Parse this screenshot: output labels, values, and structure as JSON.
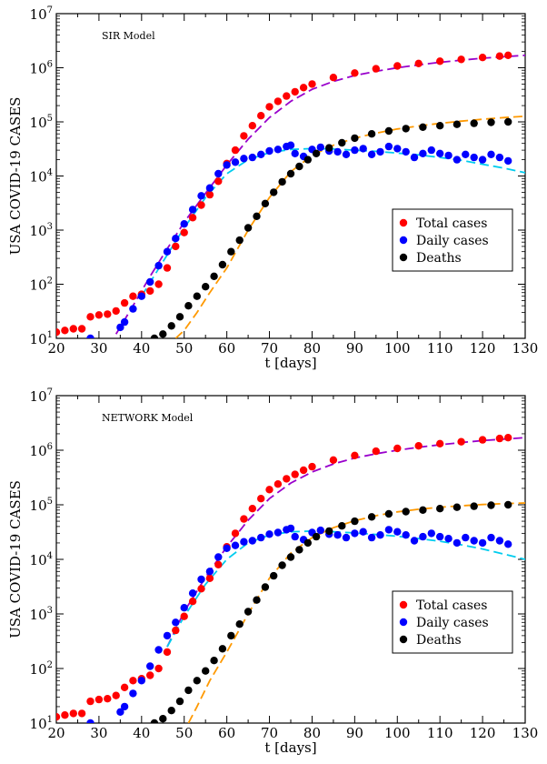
{
  "chart_data": [
    {
      "type": "scatter",
      "title": "SIR Model",
      "xlabel": "t [days]",
      "ylabel": "USA COVID-19 CASES",
      "xlim": [
        20,
        130
      ],
      "ylim": [
        10,
        10000000
      ],
      "yscale": "log",
      "xticks": [
        20,
        30,
        40,
        50,
        60,
        70,
        80,
        90,
        100,
        110,
        120,
        130
      ],
      "yticks": [
        {
          "base": "10",
          "exp": "1",
          "value": 10
        },
        {
          "base": "10",
          "exp": "2",
          "value": 100
        },
        {
          "base": "10",
          "exp": "3",
          "value": 1000
        },
        {
          "base": "10",
          "exp": "4",
          "value": 10000
        },
        {
          "base": "10",
          "exp": "5",
          "value": 100000
        },
        {
          "base": "10",
          "exp": "6",
          "value": 1000000
        },
        {
          "base": "10",
          "exp": "7",
          "value": 10000000
        }
      ],
      "legend_position": "lower-right",
      "series": [
        {
          "name": "Total cases",
          "color": "#ff0000",
          "kind": "scatter",
          "x": [
            20,
            22,
            24,
            26,
            28,
            30,
            32,
            34,
            36,
            38,
            40,
            42,
            44,
            46,
            48,
            50,
            52,
            54,
            56,
            58,
            60,
            62,
            64,
            66,
            68,
            70,
            72,
            74,
            76,
            78,
            80,
            85,
            90,
            95,
            100,
            105,
            110,
            115,
            120,
            124,
            126
          ],
          "y": [
            13,
            14,
            15,
            15,
            25,
            27,
            28,
            32,
            45,
            60,
            65,
            75,
            100,
            200,
            500,
            900,
            1700,
            2900,
            4500,
            8000,
            17000,
            30000,
            55000,
            85000,
            130000,
            190000,
            240000,
            300000,
            360000,
            430000,
            500000,
            660000,
            800000,
            960000,
            1080000,
            1200000,
            1320000,
            1430000,
            1550000,
            1640000,
            1700000
          ]
        },
        {
          "name": "Daily cases",
          "color": "#0000ff",
          "kind": "scatter",
          "x": [
            28,
            35,
            36,
            38,
            40,
            42,
            44,
            46,
            48,
            50,
            52,
            54,
            56,
            58,
            60,
            62,
            64,
            66,
            68,
            70,
            72,
            74,
            75,
            76,
            78,
            80,
            82,
            84,
            86,
            88,
            90,
            92,
            94,
            96,
            98,
            100,
            102,
            104,
            106,
            108,
            110,
            112,
            114,
            116,
            118,
            120,
            122,
            124,
            126
          ],
          "y": [
            10,
            16,
            20,
            35,
            60,
            110,
            220,
            400,
            700,
            1300,
            2400,
            4300,
            6000,
            11000,
            16000,
            18000,
            21000,
            22000,
            25000,
            29000,
            31000,
            35000,
            37000,
            26000,
            23000,
            31000,
            34000,
            29000,
            28000,
            25000,
            30000,
            32000,
            25000,
            28000,
            35000,
            32000,
            28000,
            22000,
            26000,
            30000,
            26000,
            24000,
            20000,
            25000,
            22000,
            20000,
            25000,
            22000,
            19000
          ]
        },
        {
          "name": "Deaths",
          "color": "#000000",
          "kind": "scatter",
          "x": [
            43,
            45,
            47,
            49,
            51,
            53,
            55,
            57,
            59,
            61,
            63,
            65,
            67,
            69,
            71,
            73,
            75,
            77,
            79,
            81,
            84,
            87,
            90,
            94,
            98,
            102,
            106,
            110,
            114,
            118,
            122,
            126
          ],
          "y": [
            10,
            12,
            17,
            25,
            40,
            60,
            90,
            140,
            230,
            400,
            650,
            1100,
            1800,
            3100,
            5000,
            7800,
            11000,
            15000,
            20000,
            26000,
            33000,
            41000,
            50000,
            60000,
            68000,
            75000,
            80000,
            85000,
            90000,
            94000,
            98000,
            100000
          ]
        },
        {
          "name": "",
          "color": "#9900cc",
          "kind": "line",
          "dash": "10 5",
          "x": [
            34,
            38,
            42,
            46,
            50,
            55,
            60,
            65,
            70,
            75,
            80,
            85,
            90,
            95,
            100,
            105,
            110,
            115,
            120,
            125,
            130
          ],
          "y": [
            12,
            40,
            140,
            450,
            1400,
            4800,
            16000,
            48000,
            120000,
            240000,
            400000,
            560000,
            720000,
            860000,
            1000000,
            1130000,
            1260000,
            1380000,
            1500000,
            1600000,
            1700000
          ]
        },
        {
          "name": "",
          "color": "#00ccee",
          "kind": "line",
          "dash": "10 5",
          "x": [
            40,
            45,
            50,
            55,
            60,
            65,
            70,
            75,
            80,
            85,
            90,
            95,
            100,
            105,
            110,
            115,
            120,
            125,
            130
          ],
          "y": [
            60,
            260,
            1100,
            4000,
            11000,
            20000,
            27000,
            31000,
            32000,
            31500,
            30000,
            28500,
            26500,
            24500,
            22000,
            19500,
            16500,
            14000,
            11500
          ]
        },
        {
          "name": "",
          "color": "#ff9900",
          "kind": "line",
          "dash": "10 5",
          "x": [
            48,
            50,
            53,
            56,
            60,
            65,
            70,
            75,
            80,
            85,
            90,
            95,
            100,
            105,
            110,
            115,
            120,
            125,
            130
          ],
          "y": [
            10,
            14,
            30,
            70,
            200,
            1000,
            4000,
            12000,
            24000,
            37000,
            50000,
            62000,
            74000,
            84000,
            94000,
            103000,
            112000,
            120000,
            127000
          ]
        }
      ]
    },
    {
      "type": "scatter",
      "title": "NETWORK Model",
      "xlabel": "t [days]",
      "ylabel": "USA COVID-19 CASES",
      "xlim": [
        20,
        130
      ],
      "ylim": [
        10,
        10000000
      ],
      "yscale": "log",
      "xticks": [
        20,
        30,
        40,
        50,
        60,
        70,
        80,
        90,
        100,
        110,
        120,
        130
      ],
      "yticks": [
        {
          "base": "10",
          "exp": "1",
          "value": 10
        },
        {
          "base": "10",
          "exp": "2",
          "value": 100
        },
        {
          "base": "10",
          "exp": "3",
          "value": 1000
        },
        {
          "base": "10",
          "exp": "4",
          "value": 10000
        },
        {
          "base": "10",
          "exp": "5",
          "value": 100000
        },
        {
          "base": "10",
          "exp": "6",
          "value": 1000000
        },
        {
          "base": "10",
          "exp": "7",
          "value": 10000000
        }
      ],
      "legend_position": "lower-right",
      "series": [
        {
          "name": "Total cases",
          "color": "#ff0000",
          "kind": "scatter",
          "x": [
            20,
            22,
            24,
            26,
            28,
            30,
            32,
            34,
            36,
            38,
            40,
            42,
            44,
            46,
            48,
            50,
            52,
            54,
            56,
            58,
            60,
            62,
            64,
            66,
            68,
            70,
            72,
            74,
            76,
            78,
            80,
            85,
            90,
            95,
            100,
            105,
            110,
            115,
            120,
            124,
            126
          ],
          "y": [
            13,
            14,
            15,
            15,
            25,
            27,
            28,
            32,
            45,
            60,
            65,
            75,
            100,
            200,
            500,
            900,
            1700,
            2900,
            4500,
            8000,
            17000,
            30000,
            55000,
            85000,
            130000,
            190000,
            240000,
            300000,
            360000,
            430000,
            500000,
            660000,
            800000,
            960000,
            1080000,
            1200000,
            1320000,
            1430000,
            1550000,
            1640000,
            1700000
          ]
        },
        {
          "name": "Daily cases",
          "color": "#0000ff",
          "kind": "scatter",
          "x": [
            28,
            35,
            36,
            38,
            40,
            42,
            44,
            46,
            48,
            50,
            52,
            54,
            56,
            58,
            60,
            62,
            64,
            66,
            68,
            70,
            72,
            74,
            75,
            76,
            78,
            80,
            82,
            84,
            86,
            88,
            90,
            92,
            94,
            96,
            98,
            100,
            102,
            104,
            106,
            108,
            110,
            112,
            114,
            116,
            118,
            120,
            122,
            124,
            126
          ],
          "y": [
            10,
            16,
            20,
            35,
            60,
            110,
            220,
            400,
            700,
            1300,
            2400,
            4300,
            6000,
            11000,
            16000,
            18000,
            21000,
            22000,
            25000,
            29000,
            31000,
            35000,
            37000,
            26000,
            23000,
            31000,
            34000,
            29000,
            28000,
            25000,
            30000,
            32000,
            25000,
            28000,
            35000,
            32000,
            28000,
            22000,
            26000,
            30000,
            26000,
            24000,
            20000,
            25000,
            22000,
            20000,
            25000,
            22000,
            19000
          ]
        },
        {
          "name": "Deaths",
          "color": "#000000",
          "kind": "scatter",
          "x": [
            43,
            45,
            47,
            49,
            51,
            53,
            55,
            57,
            59,
            61,
            63,
            65,
            67,
            69,
            71,
            73,
            75,
            77,
            79,
            81,
            84,
            87,
            90,
            94,
            98,
            102,
            106,
            110,
            114,
            118,
            122,
            126
          ],
          "y": [
            10,
            12,
            17,
            25,
            40,
            60,
            90,
            140,
            230,
            400,
            650,
            1100,
            1800,
            3100,
            5000,
            7800,
            11000,
            15000,
            20000,
            26000,
            33000,
            41000,
            50000,
            60000,
            68000,
            75000,
            80000,
            85000,
            90000,
            94000,
            98000,
            100000
          ]
        },
        {
          "name": "",
          "color": "#9900cc",
          "kind": "line",
          "dash": "10 5",
          "x": [
            46,
            50,
            55,
            60,
            65,
            70,
            75,
            80,
            85,
            90,
            95,
            100,
            105,
            110,
            115,
            120,
            125,
            130
          ],
          "y": [
            250,
            1100,
            4700,
            17000,
            52000,
            130000,
            250000,
            400000,
            560000,
            720000,
            860000,
            1000000,
            1130000,
            1260000,
            1380000,
            1500000,
            1600000,
            1700000
          ]
        },
        {
          "name": "",
          "color": "#00ccee",
          "kind": "line",
          "dash": "10 5",
          "x": [
            46,
            50,
            55,
            60,
            65,
            70,
            75,
            80,
            85,
            90,
            95,
            100,
            105,
            110,
            115,
            120,
            125,
            130
          ],
          "y": [
            250,
            900,
            3500,
            10000,
            20000,
            28000,
            32000,
            33000,
            32000,
            30500,
            28500,
            26500,
            24000,
            21500,
            18500,
            15500,
            12500,
            10000
          ]
        },
        {
          "name": "",
          "color": "#ff9900",
          "kind": "line",
          "dash": "10 5",
          "x": [
            51,
            53,
            56,
            60,
            65,
            70,
            75,
            80,
            85,
            90,
            95,
            100,
            105,
            110,
            115,
            120,
            125,
            130
          ],
          "y": [
            10,
            20,
            60,
            200,
            1000,
            4500,
            13000,
            25000,
            38000,
            51000,
            63000,
            74000,
            83000,
            90000,
            96000,
            101000,
            105000,
            108000
          ]
        }
      ]
    }
  ]
}
